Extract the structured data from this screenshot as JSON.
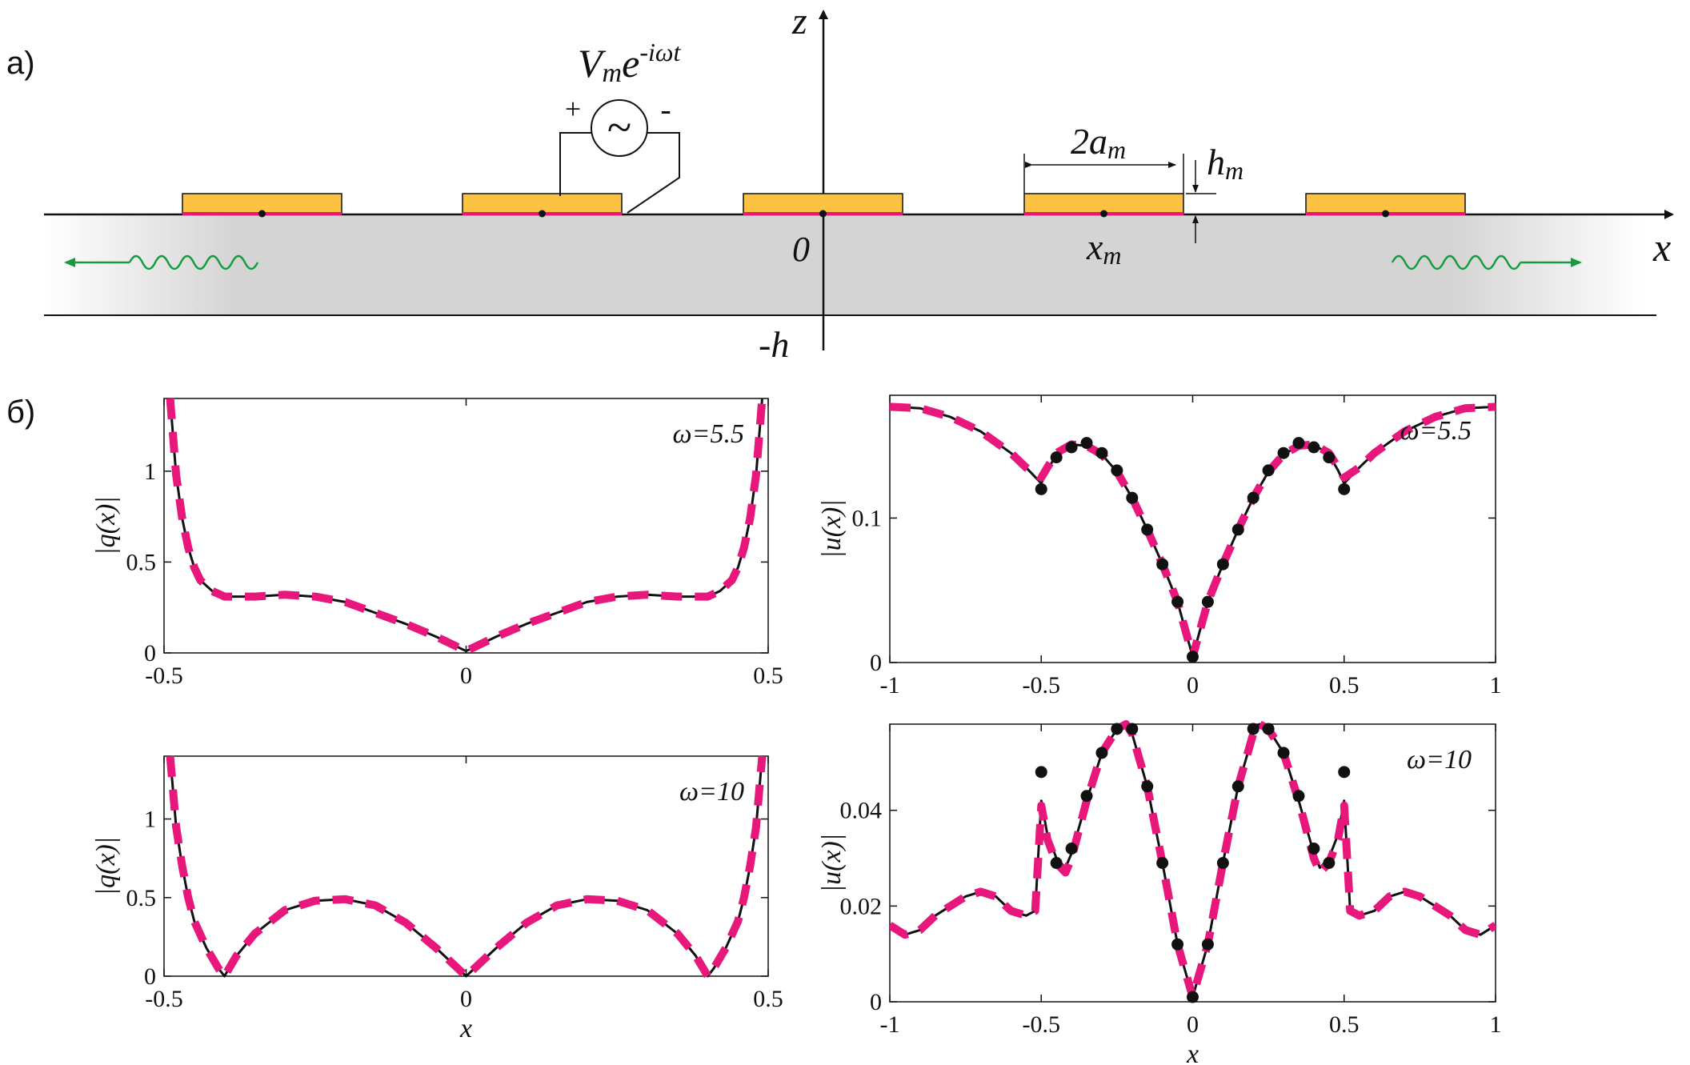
{
  "panel_a": {
    "label": "а)",
    "source_label": "Vme-iωt",
    "source_plus": "+",
    "source_minus": "-",
    "source_symbol": "~",
    "width_label": "2am",
    "height_label": "hm",
    "axis_z": "z",
    "axis_x": "x",
    "origin_label": "0",
    "position_label": "xm",
    "depth_label": "-h",
    "colors": {
      "electrode": "#fcc342",
      "electrode_edge": "#e8177c",
      "substrate": "#d4d4d4",
      "wave": "#169c3e"
    }
  },
  "panel_b": {
    "label": "б)"
  },
  "chart_data": [
    {
      "type": "line",
      "annotation": "ω=5.5",
      "xlabel": "",
      "ylabel": "|q(x)|",
      "xlim": [
        -0.5,
        0.5
      ],
      "ylim": [
        0,
        1.4
      ],
      "xticks": [
        "-0.5",
        "0",
        "0.5"
      ],
      "yticks": [
        "0",
        "0.5",
        "1"
      ],
      "series": [
        {
          "style": "solid-black",
          "x": [
            -0.49,
            -0.48,
            -0.47,
            -0.46,
            -0.45,
            -0.44,
            -0.42,
            -0.4,
            -0.35,
            -0.3,
            -0.25,
            -0.2,
            -0.15,
            -0.1,
            -0.05,
            0,
            0.05,
            0.1,
            0.15,
            0.2,
            0.25,
            0.3,
            0.35,
            0.4,
            0.42,
            0.44,
            0.45,
            0.46,
            0.47,
            0.48,
            0.49
          ],
          "y": [
            1.4,
            0.98,
            0.74,
            0.58,
            0.47,
            0.4,
            0.34,
            0.31,
            0.31,
            0.32,
            0.31,
            0.28,
            0.22,
            0.16,
            0.09,
            0.01,
            0.09,
            0.16,
            0.22,
            0.28,
            0.31,
            0.32,
            0.31,
            0.31,
            0.34,
            0.4,
            0.47,
            0.58,
            0.74,
            0.98,
            1.4
          ]
        },
        {
          "style": "dashed-pink",
          "x": [
            -0.49,
            -0.48,
            -0.47,
            -0.46,
            -0.45,
            -0.44,
            -0.42,
            -0.4,
            -0.35,
            -0.3,
            -0.25,
            -0.2,
            -0.15,
            -0.1,
            -0.05,
            0,
            0.05,
            0.1,
            0.15,
            0.2,
            0.25,
            0.3,
            0.35,
            0.4,
            0.42,
            0.44,
            0.45,
            0.46,
            0.47,
            0.48,
            0.49
          ],
          "y": [
            1.4,
            0.98,
            0.74,
            0.58,
            0.47,
            0.4,
            0.34,
            0.31,
            0.31,
            0.32,
            0.31,
            0.28,
            0.22,
            0.16,
            0.09,
            0.01,
            0.09,
            0.16,
            0.22,
            0.28,
            0.31,
            0.32,
            0.31,
            0.31,
            0.34,
            0.4,
            0.47,
            0.58,
            0.74,
            0.98,
            1.4
          ]
        }
      ]
    },
    {
      "type": "line",
      "annotation": "ω=5.5",
      "xlabel": "",
      "ylabel": "|u(x)|",
      "xlim": [
        -1,
        1
      ],
      "ylim": [
        0,
        0.185
      ],
      "xticks": [
        "-1",
        "-0.5",
        "0",
        "0.5",
        "1"
      ],
      "yticks": [
        "0",
        "0.1"
      ],
      "series": [
        {
          "style": "solid-black",
          "x": [
            -1,
            -0.9,
            -0.8,
            -0.7,
            -0.6,
            -0.55,
            -0.5,
            -0.48,
            -0.45,
            -0.4,
            -0.35,
            -0.3,
            -0.25,
            -0.2,
            -0.15,
            -0.1,
            -0.05,
            0,
            0.05,
            0.1,
            0.15,
            0.2,
            0.25,
            0.3,
            0.35,
            0.4,
            0.45,
            0.48,
            0.5,
            0.55,
            0.6,
            0.7,
            0.8,
            0.9,
            1
          ],
          "y": [
            0.177,
            0.176,
            0.17,
            0.16,
            0.145,
            0.135,
            0.124,
            0.133,
            0.144,
            0.151,
            0.15,
            0.144,
            0.132,
            0.114,
            0.092,
            0.068,
            0.042,
            0.004,
            0.042,
            0.068,
            0.092,
            0.114,
            0.132,
            0.144,
            0.15,
            0.151,
            0.144,
            0.133,
            0.124,
            0.135,
            0.145,
            0.16,
            0.17,
            0.176,
            0.177
          ]
        },
        {
          "style": "dashed-pink",
          "x": [
            -1,
            -0.9,
            -0.8,
            -0.7,
            -0.6,
            -0.55,
            -0.5,
            -0.48,
            -0.45,
            -0.4,
            -0.35,
            -0.3,
            -0.25,
            -0.2,
            -0.15,
            -0.1,
            -0.05,
            0,
            0.05,
            0.1,
            0.15,
            0.2,
            0.25,
            0.3,
            0.35,
            0.4,
            0.45,
            0.48,
            0.5,
            0.55,
            0.6,
            0.7,
            0.8,
            0.9,
            1
          ],
          "y": [
            0.177,
            0.176,
            0.17,
            0.16,
            0.145,
            0.135,
            0.128,
            0.135,
            0.145,
            0.151,
            0.15,
            0.144,
            0.132,
            0.114,
            0.092,
            0.068,
            0.042,
            0.004,
            0.042,
            0.068,
            0.092,
            0.114,
            0.132,
            0.144,
            0.15,
            0.151,
            0.145,
            0.135,
            0.128,
            0.135,
            0.145,
            0.16,
            0.17,
            0.176,
            0.177
          ]
        },
        {
          "style": "dots-black",
          "x": [
            -0.5,
            -0.45,
            -0.4,
            -0.35,
            -0.3,
            -0.25,
            -0.2,
            -0.15,
            -0.1,
            -0.05,
            0,
            0.05,
            0.1,
            0.15,
            0.2,
            0.25,
            0.3,
            0.35,
            0.4,
            0.45,
            0.5
          ],
          "y": [
            0.12,
            0.142,
            0.149,
            0.152,
            0.145,
            0.133,
            0.114,
            0.092,
            0.068,
            0.042,
            0.004,
            0.042,
            0.068,
            0.092,
            0.114,
            0.133,
            0.145,
            0.152,
            0.149,
            0.142,
            0.12
          ]
        }
      ]
    },
    {
      "type": "line",
      "annotation": "ω=10",
      "xlabel": "x",
      "ylabel": "|q(x)|",
      "xlim": [
        -0.5,
        0.5
      ],
      "ylim": [
        0,
        1.4
      ],
      "xticks": [
        "-0.5",
        "0",
        "0.5"
      ],
      "yticks": [
        "0",
        "0.5",
        "1"
      ],
      "series": [
        {
          "style": "solid-black",
          "x": [
            -0.49,
            -0.48,
            -0.47,
            -0.46,
            -0.45,
            -0.43,
            -0.41,
            -0.4,
            -0.38,
            -0.35,
            -0.3,
            -0.25,
            -0.2,
            -0.15,
            -0.1,
            -0.05,
            0,
            0.05,
            0.1,
            0.15,
            0.2,
            0.25,
            0.3,
            0.35,
            0.38,
            0.4,
            0.41,
            0.43,
            0.45,
            0.46,
            0.47,
            0.48,
            0.49
          ],
          "y": [
            1.4,
            0.95,
            0.7,
            0.5,
            0.35,
            0.18,
            0.05,
            0,
            0.13,
            0.27,
            0.42,
            0.48,
            0.49,
            0.45,
            0.34,
            0.18,
            0,
            0.18,
            0.34,
            0.45,
            0.49,
            0.48,
            0.42,
            0.27,
            0.13,
            0,
            0.05,
            0.18,
            0.35,
            0.5,
            0.7,
            0.95,
            1.4
          ]
        },
        {
          "style": "dashed-pink",
          "x": [
            -0.49,
            -0.48,
            -0.47,
            -0.46,
            -0.45,
            -0.43,
            -0.41,
            -0.4,
            -0.38,
            -0.35,
            -0.3,
            -0.25,
            -0.2,
            -0.15,
            -0.1,
            -0.05,
            0,
            0.05,
            0.1,
            0.15,
            0.2,
            0.25,
            0.3,
            0.35,
            0.38,
            0.4,
            0.41,
            0.43,
            0.45,
            0.46,
            0.47,
            0.48,
            0.49
          ],
          "y": [
            1.4,
            0.95,
            0.7,
            0.5,
            0.35,
            0.18,
            0.05,
            0,
            0.13,
            0.27,
            0.42,
            0.48,
            0.49,
            0.45,
            0.34,
            0.18,
            0,
            0.18,
            0.34,
            0.45,
            0.49,
            0.48,
            0.42,
            0.27,
            0.13,
            0,
            0.05,
            0.18,
            0.35,
            0.5,
            0.7,
            0.95,
            1.4
          ]
        }
      ]
    },
    {
      "type": "line",
      "annotation": "ω=10",
      "xlabel": "x",
      "ylabel": "|u(x)|",
      "xlim": [
        -1,
        1
      ],
      "ylim": [
        0,
        0.058
      ],
      "xticks": [
        "-1",
        "-0.5",
        "0",
        "0.5",
        "1"
      ],
      "yticks": [
        "0",
        "0.02",
        "0.04"
      ],
      "series": [
        {
          "style": "solid-black",
          "x": [
            -1,
            -0.95,
            -0.9,
            -0.85,
            -0.8,
            -0.75,
            -0.7,
            -0.65,
            -0.6,
            -0.55,
            -0.52,
            -0.5,
            -0.48,
            -0.45,
            -0.42,
            -0.4,
            -0.35,
            -0.3,
            -0.25,
            -0.22,
            -0.2,
            -0.15,
            -0.1,
            -0.05,
            0,
            0.05,
            0.1,
            0.15,
            0.2,
            0.22,
            0.25,
            0.3,
            0.35,
            0.4,
            0.42,
            0.45,
            0.48,
            0.5,
            0.52,
            0.55,
            0.6,
            0.65,
            0.7,
            0.75,
            0.8,
            0.85,
            0.9,
            0.95,
            1
          ],
          "y": [
            0.016,
            0.014,
            0.015,
            0.018,
            0.02,
            0.022,
            0.023,
            0.022,
            0.019,
            0.018,
            0.019,
            0.042,
            0.035,
            0.03,
            0.028,
            0.031,
            0.042,
            0.052,
            0.057,
            0.058,
            0.056,
            0.045,
            0.029,
            0.012,
            0.001,
            0.012,
            0.029,
            0.045,
            0.056,
            0.058,
            0.057,
            0.052,
            0.042,
            0.031,
            0.028,
            0.03,
            0.035,
            0.042,
            0.019,
            0.018,
            0.019,
            0.022,
            0.023,
            0.022,
            0.02,
            0.018,
            0.015,
            0.014,
            0.016
          ]
        },
        {
          "style": "dashed-pink",
          "x": [
            -1,
            -0.95,
            -0.9,
            -0.85,
            -0.8,
            -0.75,
            -0.7,
            -0.65,
            -0.6,
            -0.55,
            -0.52,
            -0.5,
            -0.48,
            -0.45,
            -0.42,
            -0.4,
            -0.35,
            -0.3,
            -0.25,
            -0.22,
            -0.2,
            -0.15,
            -0.1,
            -0.05,
            0,
            0.05,
            0.1,
            0.15,
            0.2,
            0.22,
            0.25,
            0.3,
            0.35,
            0.4,
            0.42,
            0.45,
            0.48,
            0.5,
            0.52,
            0.55,
            0.6,
            0.65,
            0.7,
            0.75,
            0.8,
            0.85,
            0.9,
            0.95,
            1
          ],
          "y": [
            0.016,
            0.014,
            0.015,
            0.018,
            0.02,
            0.022,
            0.023,
            0.022,
            0.019,
            0.018,
            0.019,
            0.041,
            0.034,
            0.029,
            0.027,
            0.03,
            0.042,
            0.052,
            0.057,
            0.058,
            0.056,
            0.045,
            0.029,
            0.012,
            0.001,
            0.012,
            0.029,
            0.045,
            0.056,
            0.058,
            0.057,
            0.052,
            0.042,
            0.03,
            0.027,
            0.029,
            0.034,
            0.041,
            0.019,
            0.018,
            0.019,
            0.022,
            0.023,
            0.022,
            0.02,
            0.018,
            0.015,
            0.014,
            0.016
          ]
        },
        {
          "style": "dots-black",
          "x": [
            -0.5,
            -0.45,
            -0.4,
            -0.35,
            -0.3,
            -0.25,
            -0.2,
            -0.15,
            -0.1,
            -0.05,
            0,
            0.05,
            0.1,
            0.15,
            0.2,
            0.25,
            0.3,
            0.35,
            0.4,
            0.45,
            0.5
          ],
          "y": [
            0.048,
            0.029,
            0.032,
            0.043,
            0.052,
            0.057,
            0.057,
            0.045,
            0.029,
            0.012,
            0.001,
            0.012,
            0.029,
            0.045,
            0.057,
            0.057,
            0.052,
            0.043,
            0.032,
            0.029,
            0.048
          ]
        }
      ]
    }
  ]
}
